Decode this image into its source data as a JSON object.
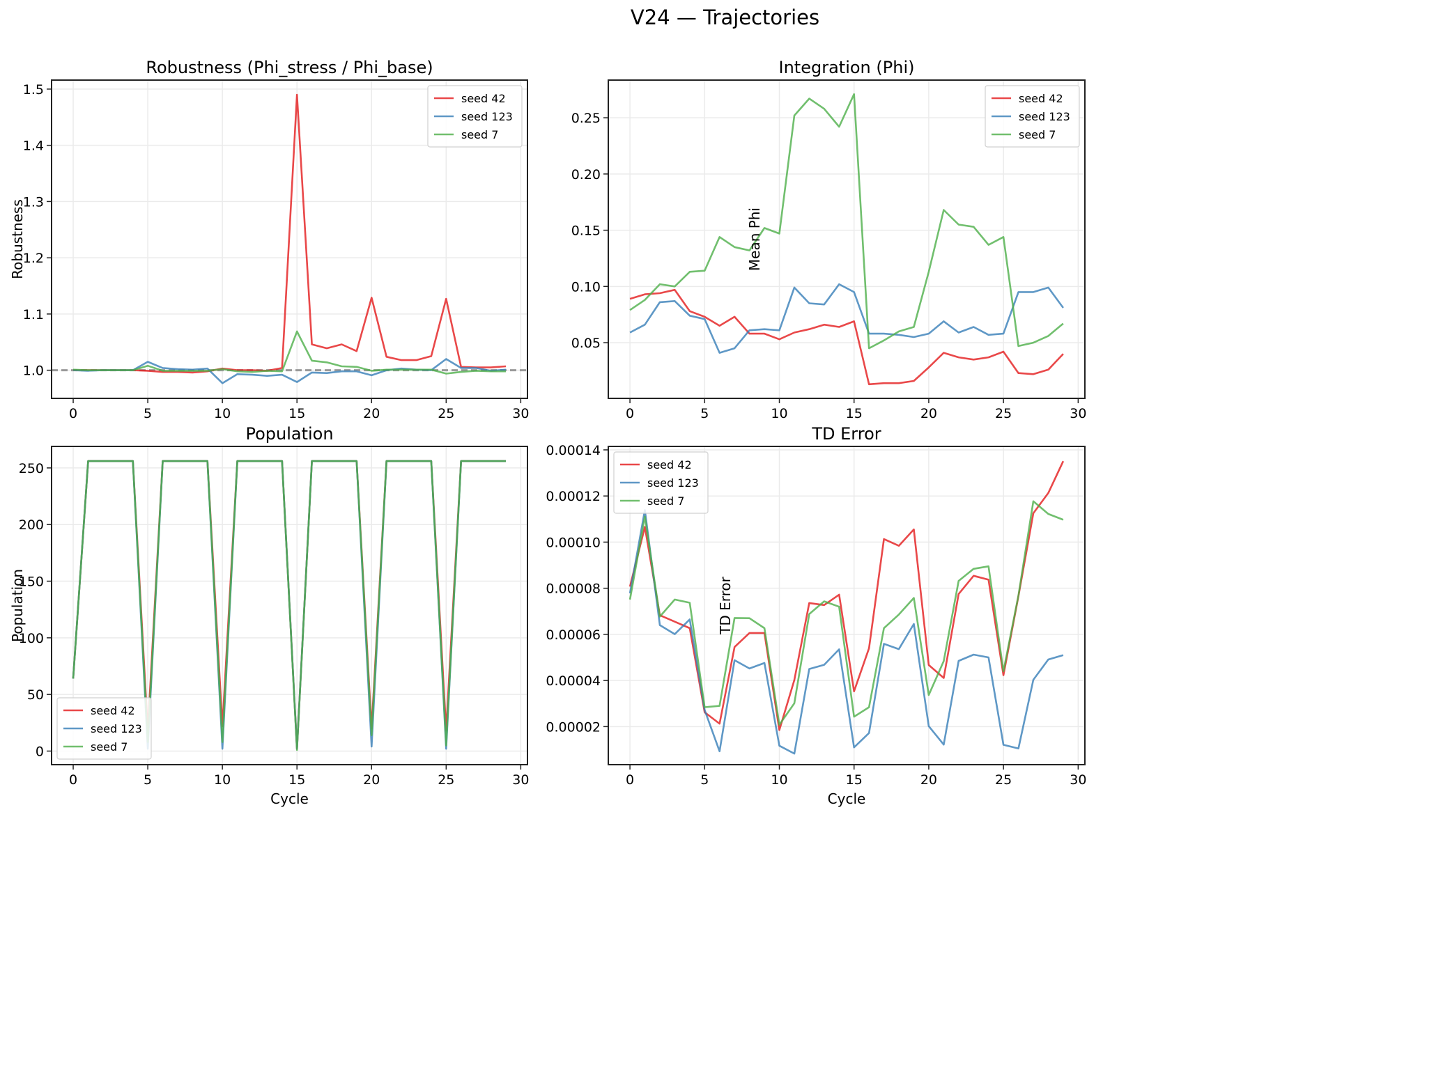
{
  "figure": {
    "title": "V24 — Trajectories"
  },
  "chart_data": [
    {
      "type": "line",
      "title": "Robustness (Phi_stress / Phi_base)",
      "xlabel": "",
      "ylabel": "Robustness",
      "xlim": [
        -1.45,
        30.45
      ],
      "ylim": [
        0.95,
        1.516
      ],
      "xticks": [
        0,
        5,
        10,
        15,
        20,
        25,
        30
      ],
      "yticks": [
        1.0,
        1.1,
        1.2,
        1.3,
        1.4,
        1.5
      ],
      "ytick_labels": [
        "1.0",
        "1.1",
        "1.2",
        "1.3",
        "1.4",
        "1.5"
      ],
      "grid": true,
      "legend": "upper right",
      "reference_line": {
        "y": 1.0,
        "style": "dashed",
        "color": "#999999"
      },
      "x": [
        0,
        1,
        2,
        3,
        4,
        5,
        6,
        7,
        8,
        9,
        10,
        11,
        12,
        13,
        14,
        15,
        16,
        17,
        18,
        19,
        20,
        21,
        22,
        23,
        24,
        25,
        26,
        27,
        28,
        29
      ],
      "series": [
        {
          "name": "seed 42",
          "color": "#e41a1c",
          "values": [
            1.0,
            1.0,
            1.0,
            1.0,
            1.0,
            0.999,
            0.997,
            0.997,
            0.996,
            0.998,
            1.003,
            1.0,
            1.0,
            0.999,
            1.004,
            1.49,
            1.046,
            1.039,
            1.046,
            1.034,
            1.129,
            1.024,
            1.018,
            1.018,
            1.025,
            1.127,
            1.006,
            1.005,
            1.005,
            1.007
          ]
        },
        {
          "name": "seed 123",
          "color": "#377eb8",
          "values": [
            1.0,
            0.999,
            1.0,
            1.0,
            1.0,
            1.015,
            1.004,
            1.002,
            1.001,
            1.003,
            0.977,
            0.993,
            0.992,
            0.99,
            0.992,
            0.979,
            0.996,
            0.995,
            0.998,
            0.998,
            0.991,
            1.0,
            1.003,
            1.001,
            1.0,
            1.02,
            1.004,
            1.004,
            0.999,
            1.001
          ]
        },
        {
          "name": "seed 7",
          "color": "#4daf4a",
          "values": [
            1.001,
            1.0,
            1.0,
            1.0,
            1.0,
            1.008,
            0.999,
            0.999,
            0.999,
            0.999,
            1.002,
            0.998,
            0.997,
            0.999,
            0.998,
            1.069,
            1.017,
            1.014,
            1.007,
            1.006,
            0.999,
            1.001,
            1.001,
            1.001,
            1.001,
            0.994,
            0.997,
            0.999,
            0.998,
            0.998
          ]
        }
      ]
    },
    {
      "type": "line",
      "title": "Integration (Phi)",
      "xlabel": "",
      "ylabel": "Mean Phi",
      "xlim": [
        -1.45,
        30.45
      ],
      "ylim": [
        0.0005,
        0.2835
      ],
      "xticks": [
        0,
        5,
        10,
        15,
        20,
        25,
        30
      ],
      "yticks": [
        0.05,
        0.1,
        0.15,
        0.2,
        0.25
      ],
      "ytick_labels": [
        "0.05",
        "0.10",
        "0.15",
        "0.20",
        "0.25"
      ],
      "grid": true,
      "legend": "upper right",
      "x": [
        0,
        1,
        2,
        3,
        4,
        5,
        6,
        7,
        8,
        9,
        10,
        11,
        12,
        13,
        14,
        15,
        16,
        17,
        18,
        19,
        20,
        21,
        22,
        23,
        24,
        25,
        26,
        27,
        28,
        29
      ],
      "series": [
        {
          "name": "seed 42",
          "color": "#e41a1c",
          "values": [
            0.089,
            0.093,
            0.094,
            0.097,
            0.078,
            0.073,
            0.065,
            0.073,
            0.058,
            0.058,
            0.053,
            0.059,
            0.062,
            0.066,
            0.064,
            0.069,
            0.013,
            0.014,
            0.014,
            0.016,
            0.028,
            0.041,
            0.037,
            0.035,
            0.037,
            0.042,
            0.023,
            0.022,
            0.026,
            0.04
          ]
        },
        {
          "name": "seed 123",
          "color": "#377eb8",
          "values": [
            0.059,
            0.066,
            0.086,
            0.087,
            0.074,
            0.071,
            0.041,
            0.045,
            0.061,
            0.062,
            0.061,
            0.099,
            0.085,
            0.084,
            0.102,
            0.095,
            0.058,
            0.058,
            0.057,
            0.055,
            0.058,
            0.069,
            0.059,
            0.064,
            0.057,
            0.058,
            0.095,
            0.095,
            0.099,
            0.081
          ]
        },
        {
          "name": "seed 7",
          "color": "#4daf4a",
          "values": [
            0.079,
            0.088,
            0.102,
            0.1,
            0.113,
            0.114,
            0.144,
            0.135,
            0.132,
            0.152,
            0.147,
            0.252,
            0.267,
            0.258,
            0.242,
            0.271,
            0.045,
            0.052,
            0.06,
            0.064,
            0.113,
            0.168,
            0.155,
            0.153,
            0.137,
            0.144,
            0.047,
            0.05,
            0.056,
            0.067
          ]
        }
      ]
    },
    {
      "type": "line",
      "title": "Population",
      "xlabel": "Cycle",
      "ylabel": "Population",
      "xlim": [
        -1.45,
        30.45
      ],
      "ylim": [
        -12,
        269
      ],
      "xticks": [
        0,
        5,
        10,
        15,
        20,
        25,
        30
      ],
      "yticks": [
        0,
        50,
        100,
        150,
        200,
        250
      ],
      "ytick_labels": [
        "0",
        "50",
        "100",
        "150",
        "200",
        "250"
      ],
      "grid": true,
      "legend": "lower left",
      "x": [
        0,
        1,
        2,
        3,
        4,
        5,
        6,
        7,
        8,
        9,
        10,
        11,
        12,
        13,
        14,
        15,
        16,
        17,
        18,
        19,
        20,
        21,
        22,
        23,
        24,
        25,
        26,
        27,
        28,
        29
      ],
      "series": [
        {
          "name": "seed 42",
          "color": "#e41a1c",
          "values": [
            64,
            256,
            256,
            256,
            256,
            18,
            256,
            256,
            256,
            256,
            22,
            256,
            256,
            256,
            256,
            2,
            256,
            256,
            256,
            256,
            20,
            256,
            256,
            256,
            256,
            18,
            256,
            256,
            256,
            256
          ]
        },
        {
          "name": "seed 123",
          "color": "#377eb8",
          "values": [
            64,
            256,
            256,
            256,
            256,
            2,
            256,
            256,
            256,
            256,
            2,
            256,
            256,
            256,
            256,
            2,
            256,
            256,
            256,
            256,
            4,
            256,
            256,
            256,
            256,
            2,
            256,
            256,
            256,
            256
          ]
        },
        {
          "name": "seed 7",
          "color": "#4daf4a",
          "values": [
            64,
            256,
            256,
            256,
            256,
            8,
            256,
            256,
            256,
            256,
            8,
            256,
            256,
            256,
            256,
            1,
            256,
            256,
            256,
            256,
            14,
            256,
            256,
            256,
            256,
            5,
            256,
            256,
            256,
            256
          ]
        }
      ]
    },
    {
      "type": "line",
      "title": "TD Error",
      "xlabel": "Cycle",
      "ylabel": "TD Error",
      "xlim": [
        -1.45,
        30.45
      ],
      "ylim": [
        3.5e-06,
        0.0001415
      ],
      "xticks": [
        0,
        5,
        10,
        15,
        20,
        25,
        30
      ],
      "yticks": [
        2e-05,
        4e-05,
        6e-05,
        8e-05,
        0.0001,
        0.00012,
        0.00014
      ],
      "ytick_labels": [
        "0.00002",
        "0.00004",
        "0.00006",
        "0.00008",
        "0.00010",
        "0.00012",
        "0.00014"
      ],
      "grid": true,
      "legend": "upper left",
      "x": [
        0,
        1,
        2,
        3,
        4,
        5,
        6,
        7,
        8,
        9,
        10,
        11,
        12,
        13,
        14,
        15,
        16,
        17,
        18,
        19,
        20,
        21,
        22,
        23,
        24,
        25,
        26,
        27,
        28,
        29
      ],
      "series": [
        {
          "name": "seed 42",
          "color": "#e41a1c",
          "values": [
            8.07e-05,
            0.0001066,
            6.83e-05,
            6.55e-05,
            6.27e-05,
            2.62e-05,
            2.13e-05,
            5.45e-05,
            6.06e-05,
            6.06e-05,
            1.85e-05,
            4.02e-05,
            7.36e-05,
            7.27e-05,
            7.72e-05,
            3.53e-05,
            5.4e-05,
            0.0001013,
            9.84e-05,
            0.0001055,
            4.67e-05,
            4.11e-05,
            7.75e-05,
            8.54e-05,
            8.37e-05,
            4.23e-05,
            7.65e-05,
            0.0001125,
            0.0001213,
            0.0001351
          ]
        },
        {
          "name": "seed 123",
          "color": "#377eb8",
          "values": [
            7.78e-05,
            0.0001139,
            6.4e-05,
            6.01e-05,
            6.65e-05,
            2.72e-05,
            9.3e-06,
            4.88e-05,
            4.52e-05,
            4.76e-05,
            1.17e-05,
            8.3e-06,
            4.5e-05,
            4.68e-05,
            5.35e-05,
            1.1e-05,
            1.72e-05,
            5.59e-05,
            5.36e-05,
            6.45e-05,
            2.02e-05,
            1.22e-05,
            4.85e-05,
            5.12e-05,
            5e-05,
            1.21e-05,
            1.05e-05,
            4.03e-05,
            4.91e-05,
            5.1e-05
          ]
        },
        {
          "name": "seed 7",
          "color": "#4daf4a",
          "values": [
            7.51e-05,
            0.0001111,
            6.77e-05,
            7.51e-05,
            7.37e-05,
            2.84e-05,
            2.9e-05,
            6.71e-05,
            6.7e-05,
            6.27e-05,
            2.08e-05,
            3.01e-05,
            6.88e-05,
            7.43e-05,
            7.2e-05,
            2.43e-05,
            2.84e-05,
            6.27e-05,
            6.86e-05,
            7.58e-05,
            3.37e-05,
            4.84e-05,
            8.32e-05,
            8.84e-05,
            8.95e-05,
            4.4e-05,
            7.68e-05,
            0.0001177,
            0.0001122,
            0.0001097
          ]
        }
      ]
    }
  ]
}
